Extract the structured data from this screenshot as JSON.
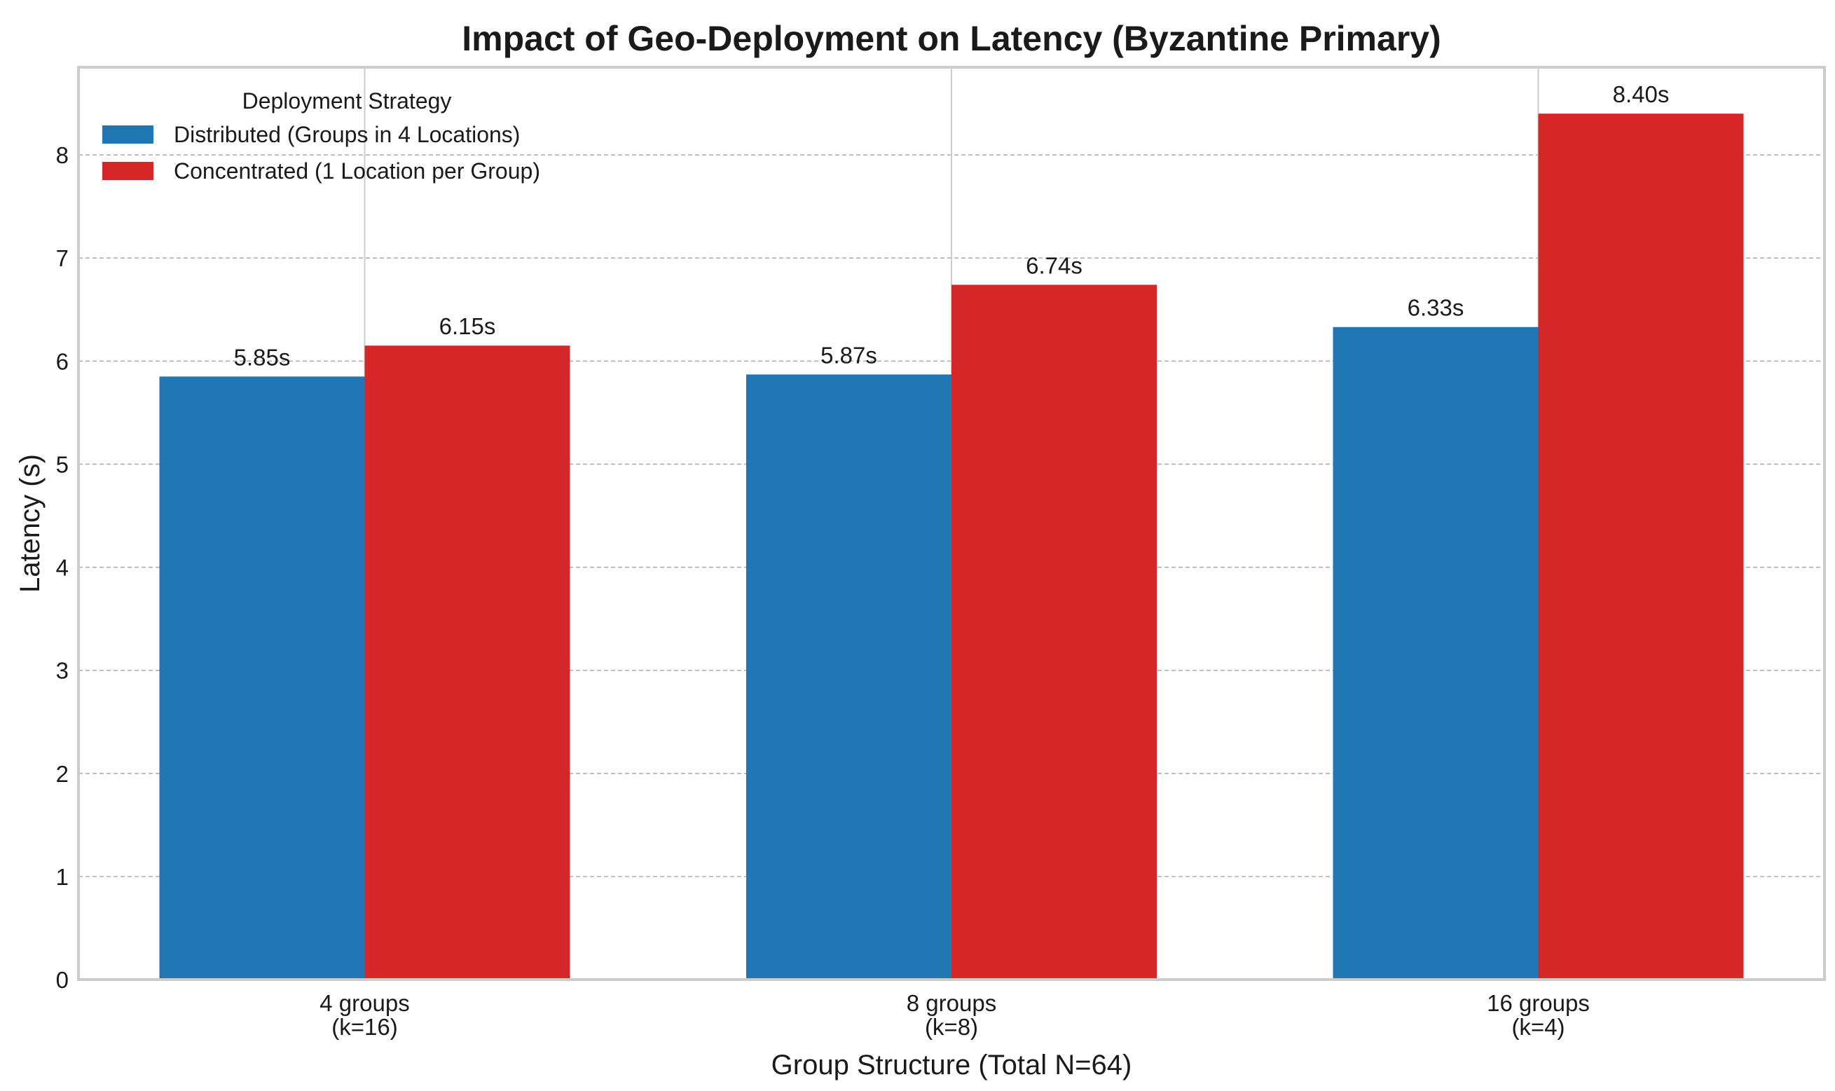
{
  "chart_data": {
    "type": "bar",
    "title": "Impact of Geo-Deployment on Latency (Byzantine Primary)",
    "xlabel": "Group Structure (Total N=64)",
    "ylabel": "Latency (s)",
    "categories": [
      [
        "4 groups",
        "(k=16)"
      ],
      [
        "8 groups",
        "(k=8)"
      ],
      [
        "16 groups",
        "(k=4)"
      ]
    ],
    "ylim": [
      0,
      8.85
    ],
    "yticks": [
      "0",
      "1",
      "2",
      "3",
      "4",
      "5",
      "6",
      "7",
      "8"
    ],
    "grid": "y (dashed), plus x gridlines at category centers",
    "legend": {
      "title": "Deployment Strategy",
      "position": "top-left"
    },
    "series": [
      {
        "name": "Distributed (Groups in 4 Locations)",
        "color": "#2077b4",
        "values": [
          5.85,
          5.87,
          6.33
        ],
        "labels": [
          "5.85s",
          "5.87s",
          "6.33s"
        ]
      },
      {
        "name": "Concentrated (1 Location per Group)",
        "color": "#d62728",
        "values": [
          6.15,
          6.74,
          8.4
        ],
        "labels": [
          "6.15s",
          "6.74s",
          "8.40s"
        ]
      }
    ]
  }
}
